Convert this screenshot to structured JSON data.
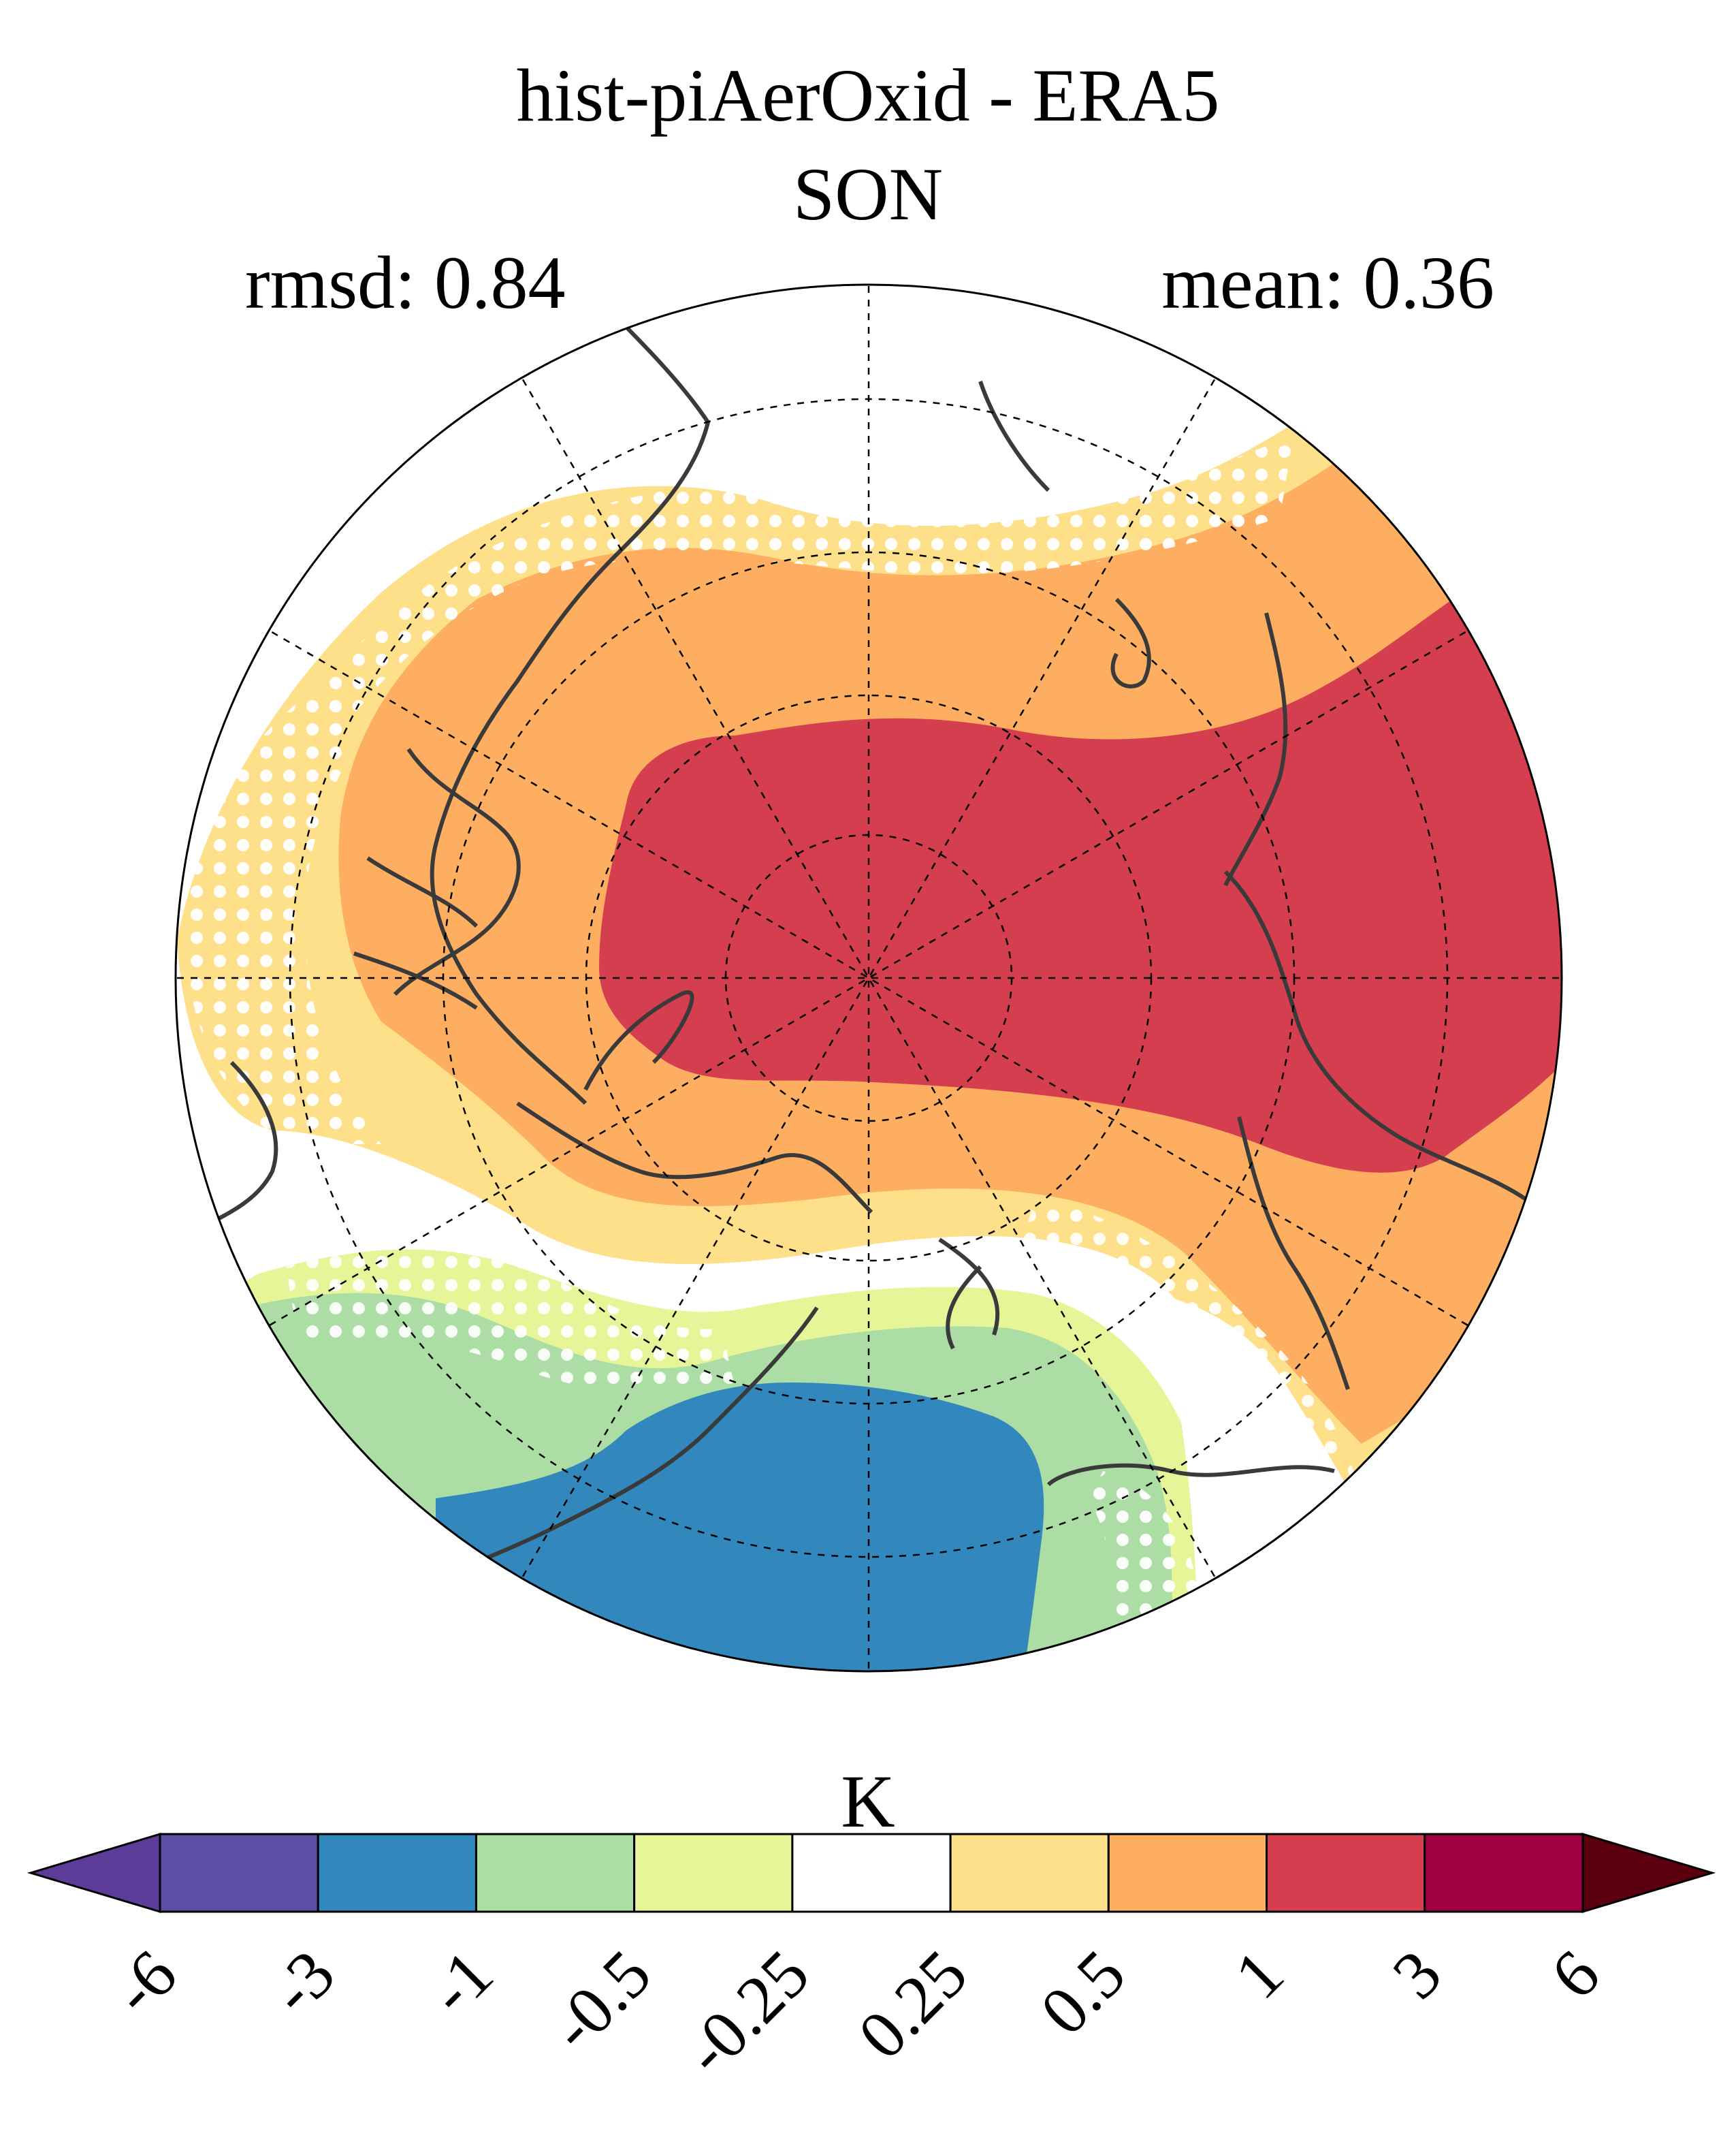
{
  "map": {
    "title": "hist-piAerOxid - ERA5",
    "season": "SON",
    "rmsd_label": "rmsd: 0.84",
    "mean_label": "mean: 0.36",
    "projection": "north-polar-stereographic",
    "stippling": "white-dots",
    "coastline_color": "#3a3a3a"
  },
  "colorbar": {
    "units": "K",
    "tick_labels": [
      "-6",
      "-3",
      "-1",
      "-0.5",
      "-0.25",
      "0.25",
      "0.5",
      "1",
      "3",
      "6"
    ],
    "colors": [
      "#5e3c99",
      "#5c4fa6",
      "#3288bd",
      "#abdda4",
      "#e6f598",
      "#ffffff",
      "#fee08b",
      "#fdae61",
      "#d53e4f",
      "#9e0142",
      "#5c0010"
    ],
    "extend": "both"
  }
}
